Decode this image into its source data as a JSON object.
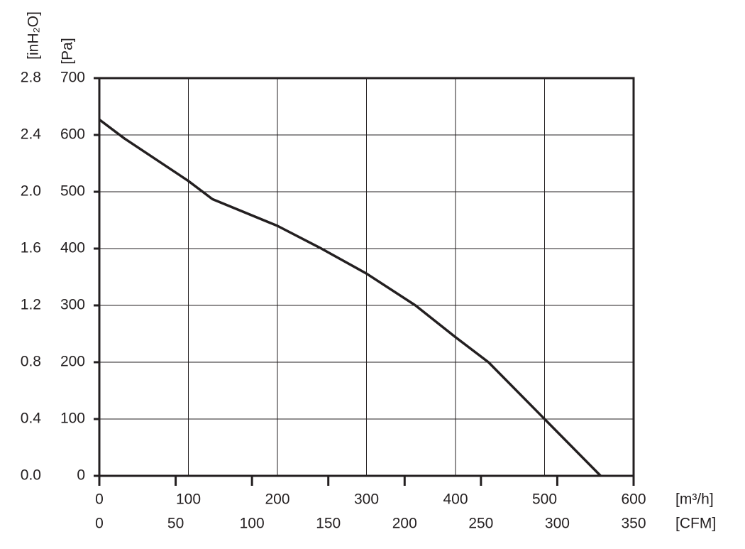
{
  "chart_data": {
    "type": "line",
    "x_label": "[m³/h]",
    "x2_label": "[CFM]",
    "y_label": "[Pa]",
    "y2_label": "[inH₂O]",
    "x": [
      0,
      28,
      100,
      127,
      200,
      247,
      300,
      355,
      400,
      437,
      500,
      563
    ],
    "series": [
      {
        "color": "#231f20",
        "values": [
          627,
          594,
          519,
          487,
          440,
          402,
          356,
          300,
          244,
          200,
          100,
          0
        ]
      }
    ],
    "xlim": [
      0,
      600
    ],
    "xticks": [
      0,
      100,
      200,
      300,
      400,
      500,
      600
    ],
    "x2lim": [
      0,
      350
    ],
    "x2ticks": [
      0,
      50,
      100,
      150,
      200,
      250,
      300,
      350
    ],
    "ylim": [
      0,
      700
    ],
    "yticks": [
      0,
      100,
      200,
      300,
      400,
      500,
      600,
      700
    ],
    "y2lim": [
      0,
      2.8
    ],
    "y2ticks": [
      {
        "value": 0,
        "label": "0.0"
      },
      0.4,
      0.8,
      1.2,
      1.6,
      {
        "value": 2,
        "label": "2.0"
      },
      2.4,
      2.8
    ],
    "grid": true
  }
}
